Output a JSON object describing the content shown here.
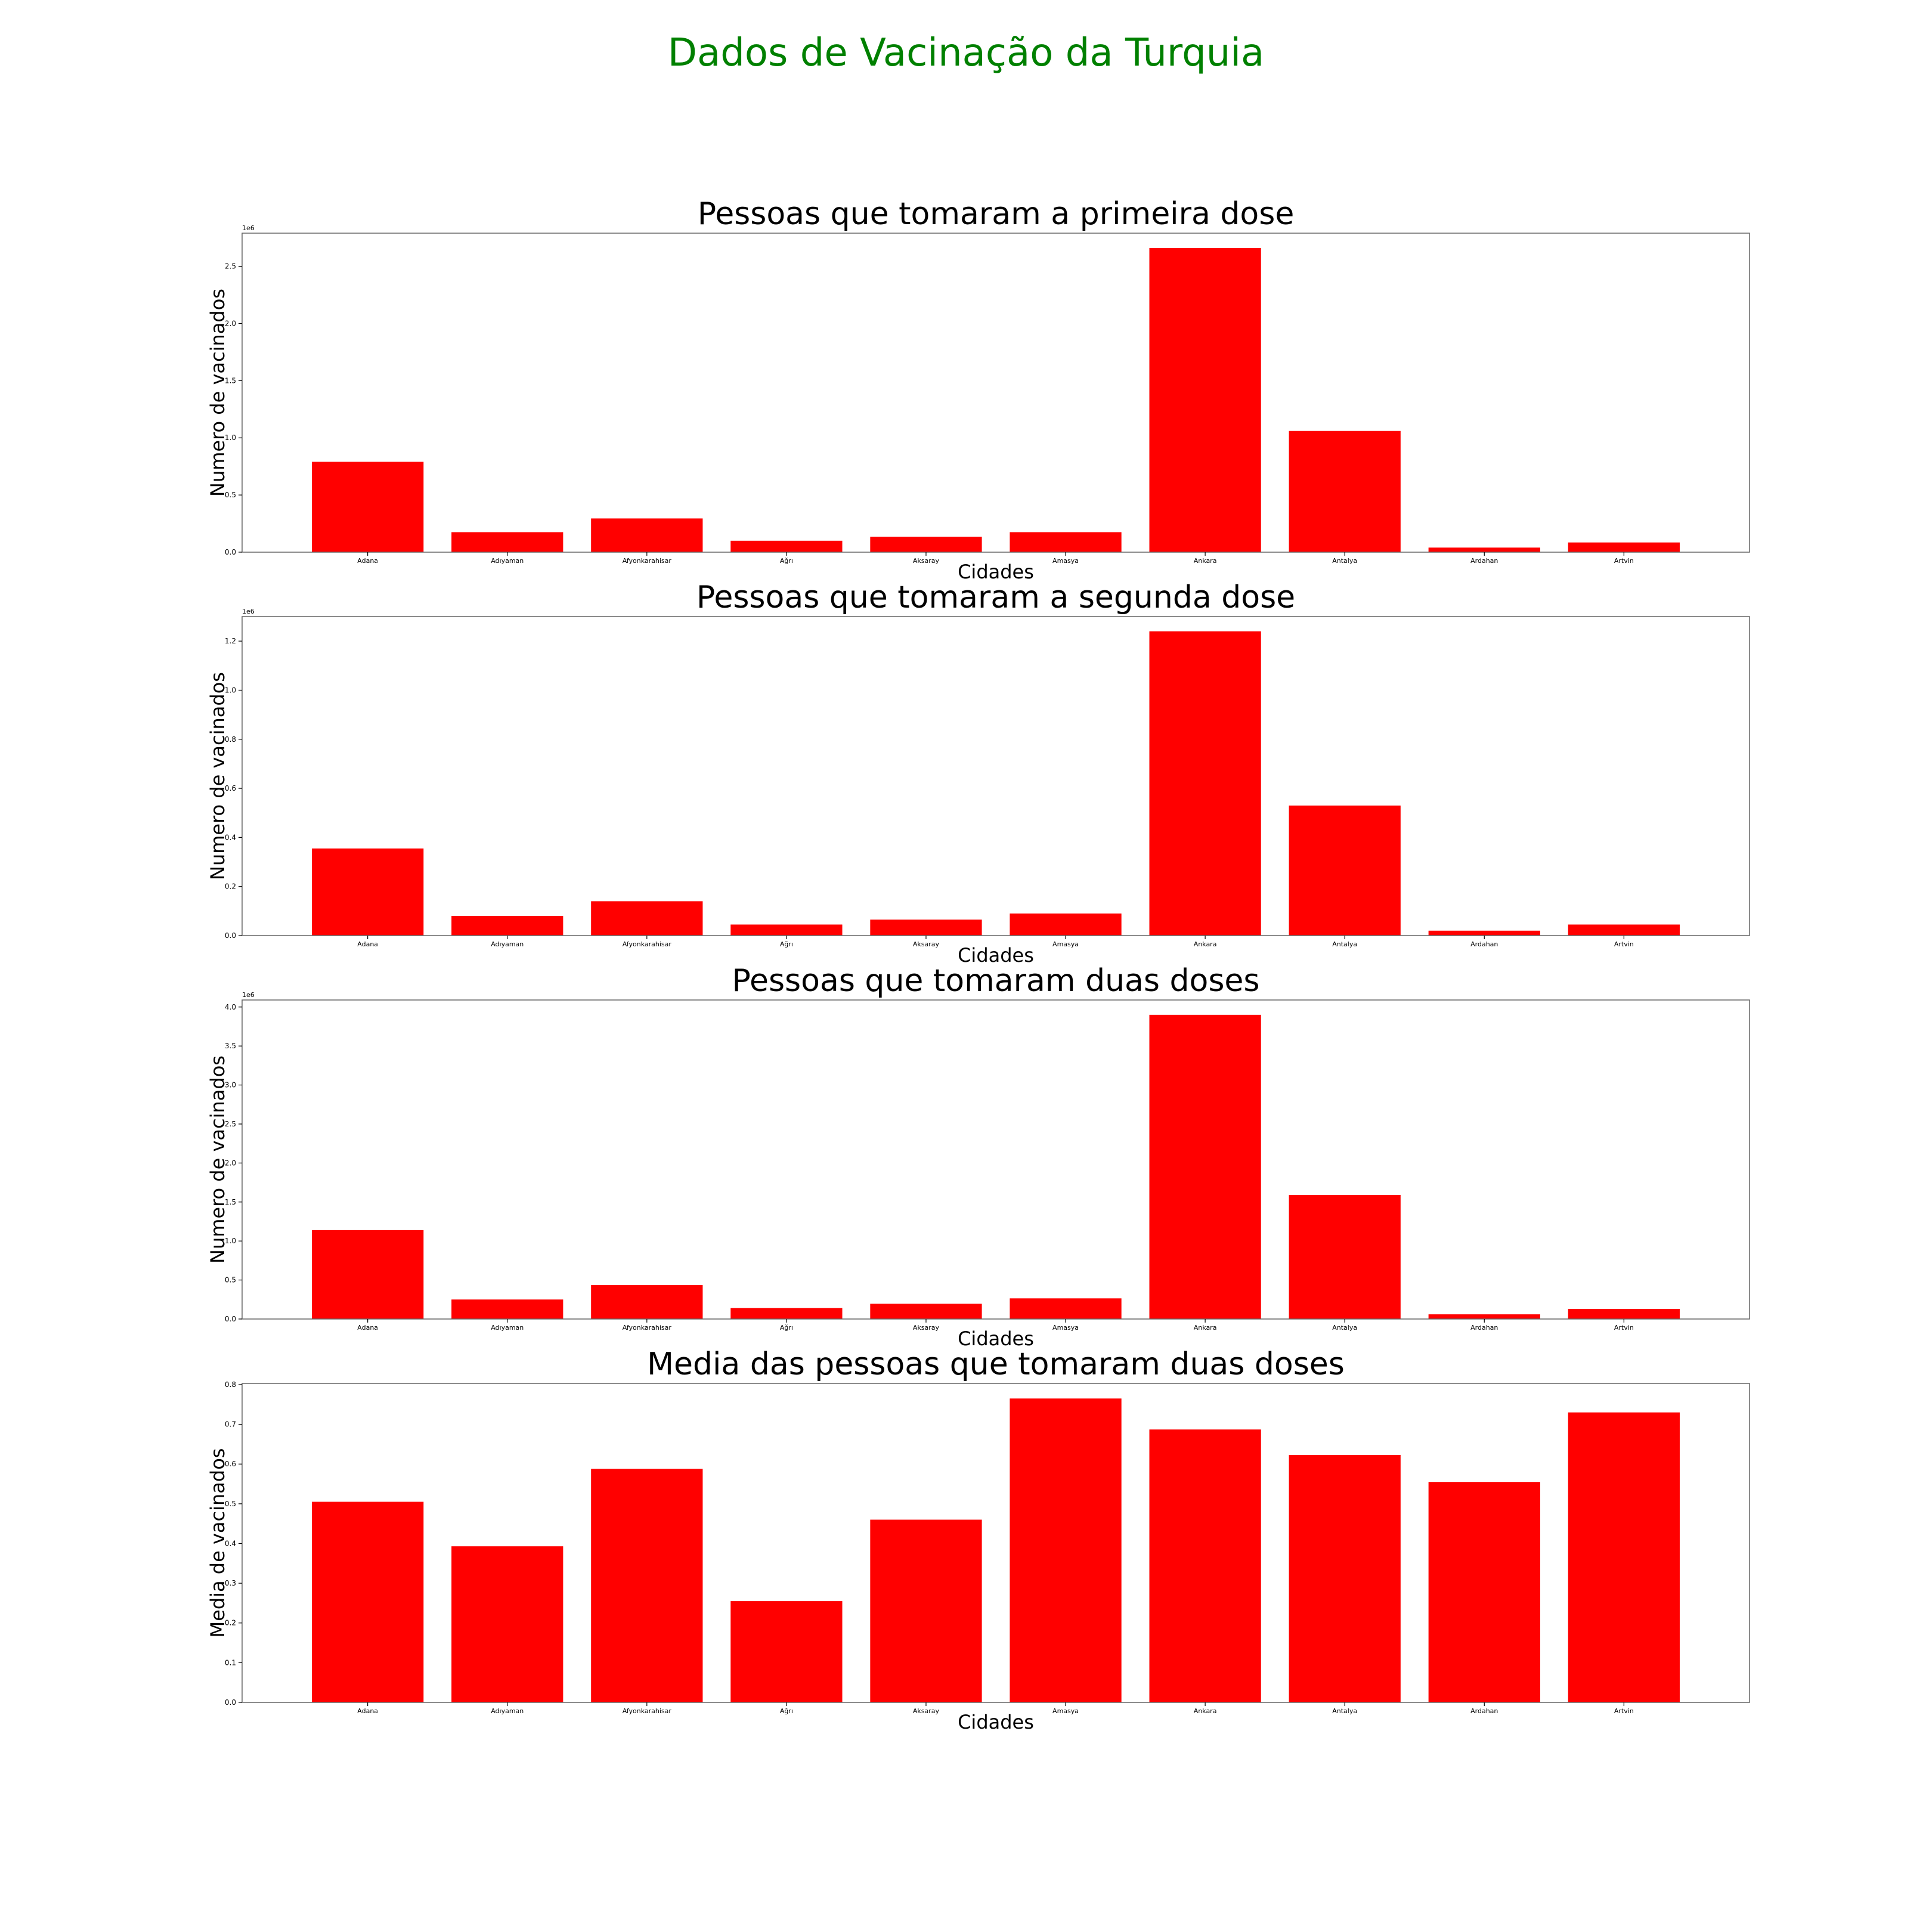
{
  "figure": {
    "suptitle": "Dados de Vacinação da Turquia",
    "suptitle_color": "#008000",
    "bar_color": "#ff0000"
  },
  "chart_data": [
    {
      "type": "bar",
      "title": "Pessoas que tomaram a primeira dose",
      "xlabel": "Cidades",
      "ylabel": "Numero de vacinados",
      "offset_text": "1e6",
      "categories": [
        "Adana",
        "Adıyaman",
        "Afyonkarahisar",
        "Ağrı",
        "Aksaray",
        "Amasya",
        "Ankara",
        "Antalya",
        "Ardahan",
        "Artvin"
      ],
      "values": [
        790000,
        175000,
        295000,
        100000,
        135000,
        175000,
        2660000,
        1060000,
        40000,
        85000
      ],
      "ylim": [
        0,
        2790000
      ],
      "yticks": [
        0,
        500000,
        1000000,
        1500000,
        2000000,
        2500000
      ],
      "ytick_labels": [
        "0.0",
        "0.5",
        "1.0",
        "1.5",
        "2.0",
        "2.5"
      ]
    },
    {
      "type": "bar",
      "title": "Pessoas que tomaram a segunda dose",
      "xlabel": "Cidades",
      "ylabel": "Numero de vacinados",
      "offset_text": "1e6",
      "categories": [
        "Adana",
        "Adıyaman",
        "Afyonkarahisar",
        "Ağrı",
        "Aksaray",
        "Amasya",
        "Ankara",
        "Antalya",
        "Ardahan",
        "Artvin"
      ],
      "values": [
        355000,
        80000,
        140000,
        45000,
        65000,
        90000,
        1240000,
        530000,
        20000,
        45000
      ],
      "ylim": [
        0,
        1300000
      ],
      "yticks": [
        0,
        200000,
        400000,
        600000,
        800000,
        1000000,
        1200000
      ],
      "ytick_labels": [
        "0.0",
        "0.2",
        "0.4",
        "0.6",
        "0.8",
        "1.0",
        "1.2"
      ]
    },
    {
      "type": "bar",
      "title": "Pessoas que tomaram duas doses",
      "xlabel": "Cidades",
      "ylabel": "Numero de vacinados",
      "offset_text": "1e6",
      "categories": [
        "Adana",
        "Adıyaman",
        "Afyonkarahisar",
        "Ağrı",
        "Aksaray",
        "Amasya",
        "Ankara",
        "Antalya",
        "Ardahan",
        "Artvin"
      ],
      "values": [
        1140000,
        250000,
        435000,
        140000,
        195000,
        265000,
        3900000,
        1590000,
        60000,
        130000
      ],
      "ylim": [
        0,
        4090000
      ],
      "yticks": [
        0,
        500000,
        1000000,
        1500000,
        2000000,
        2500000,
        3000000,
        3500000,
        4000000
      ],
      "ytick_labels": [
        "0.0",
        "0.5",
        "1.0",
        "1.5",
        "2.0",
        "2.5",
        "3.0",
        "3.5",
        "4.0"
      ]
    },
    {
      "type": "bar",
      "title": "Media das pessoas que tomaram duas doses",
      "xlabel": "Cidades",
      "ylabel": "Media de vacinados",
      "offset_text": "",
      "categories": [
        "Adana",
        "Adıyaman",
        "Afyonkarahisar",
        "Ağrı",
        "Aksaray",
        "Amasya",
        "Ankara",
        "Antalya",
        "Ardahan",
        "Artvin"
      ],
      "values": [
        0.505,
        0.393,
        0.588,
        0.255,
        0.46,
        0.765,
        0.687,
        0.623,
        0.555,
        0.73
      ],
      "ylim": [
        0,
        0.803
      ],
      "yticks": [
        0,
        0.1,
        0.2,
        0.3,
        0.4,
        0.5,
        0.6,
        0.7,
        0.8
      ],
      "ytick_labels": [
        "0.0",
        "0.1",
        "0.2",
        "0.3",
        "0.4",
        "0.5",
        "0.6",
        "0.7",
        "0.8"
      ]
    }
  ]
}
